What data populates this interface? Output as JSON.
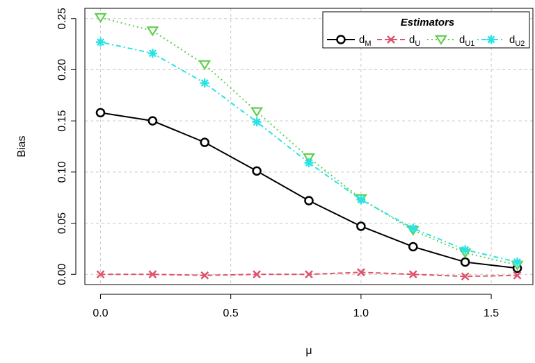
{
  "chart_data": {
    "type": "line",
    "xlabel": "μ",
    "ylabel": "Bias",
    "xlim": [
      -0.06,
      1.66
    ],
    "ylim": [
      -0.01,
      0.26
    ],
    "xticks": [
      0.0,
      0.5,
      1.0,
      1.5
    ],
    "xtick_labels": [
      "0.0",
      "0.5",
      "1.0",
      "1.5"
    ],
    "yticks": [
      0.0,
      0.05,
      0.1,
      0.15,
      0.2,
      0.25
    ],
    "ytick_labels": [
      "0.00",
      "0.05",
      "0.10",
      "0.15",
      "0.20",
      "0.25"
    ],
    "grid": true,
    "legend": {
      "title": "Estimators",
      "position": "top-right"
    },
    "x": [
      0.0,
      0.2,
      0.4,
      0.6,
      0.8,
      1.0,
      1.2,
      1.4,
      1.6
    ],
    "series": [
      {
        "name": "d_M",
        "base": "d",
        "sub": "M",
        "color": "#000000",
        "dash": "solid",
        "marker": "circle",
        "values": [
          0.158,
          0.15,
          0.129,
          0.101,
          0.072,
          0.047,
          0.027,
          0.012,
          0.006
        ]
      },
      {
        "name": "d_U",
        "base": "d",
        "sub": "U",
        "color": "#DF536B",
        "dash": "dashed",
        "marker": "x",
        "values": [
          0.0,
          0.0,
          -0.001,
          0.0,
          0.0,
          0.002,
          0.0,
          -0.002,
          -0.001
        ]
      },
      {
        "name": "d_U1",
        "base": "d",
        "sub": "U1",
        "color": "#61D04F",
        "dash": "dotted",
        "marker": "triangle-down",
        "values": [
          0.251,
          0.238,
          0.205,
          0.159,
          0.114,
          0.074,
          0.043,
          0.021,
          0.009
        ]
      },
      {
        "name": "d_U2",
        "base": "d",
        "sub": "U2",
        "color": "#28E2E5",
        "dash": "dotdash",
        "marker": "asterisk",
        "values": [
          0.227,
          0.216,
          0.187,
          0.149,
          0.109,
          0.073,
          0.045,
          0.024,
          0.012
        ]
      }
    ]
  }
}
